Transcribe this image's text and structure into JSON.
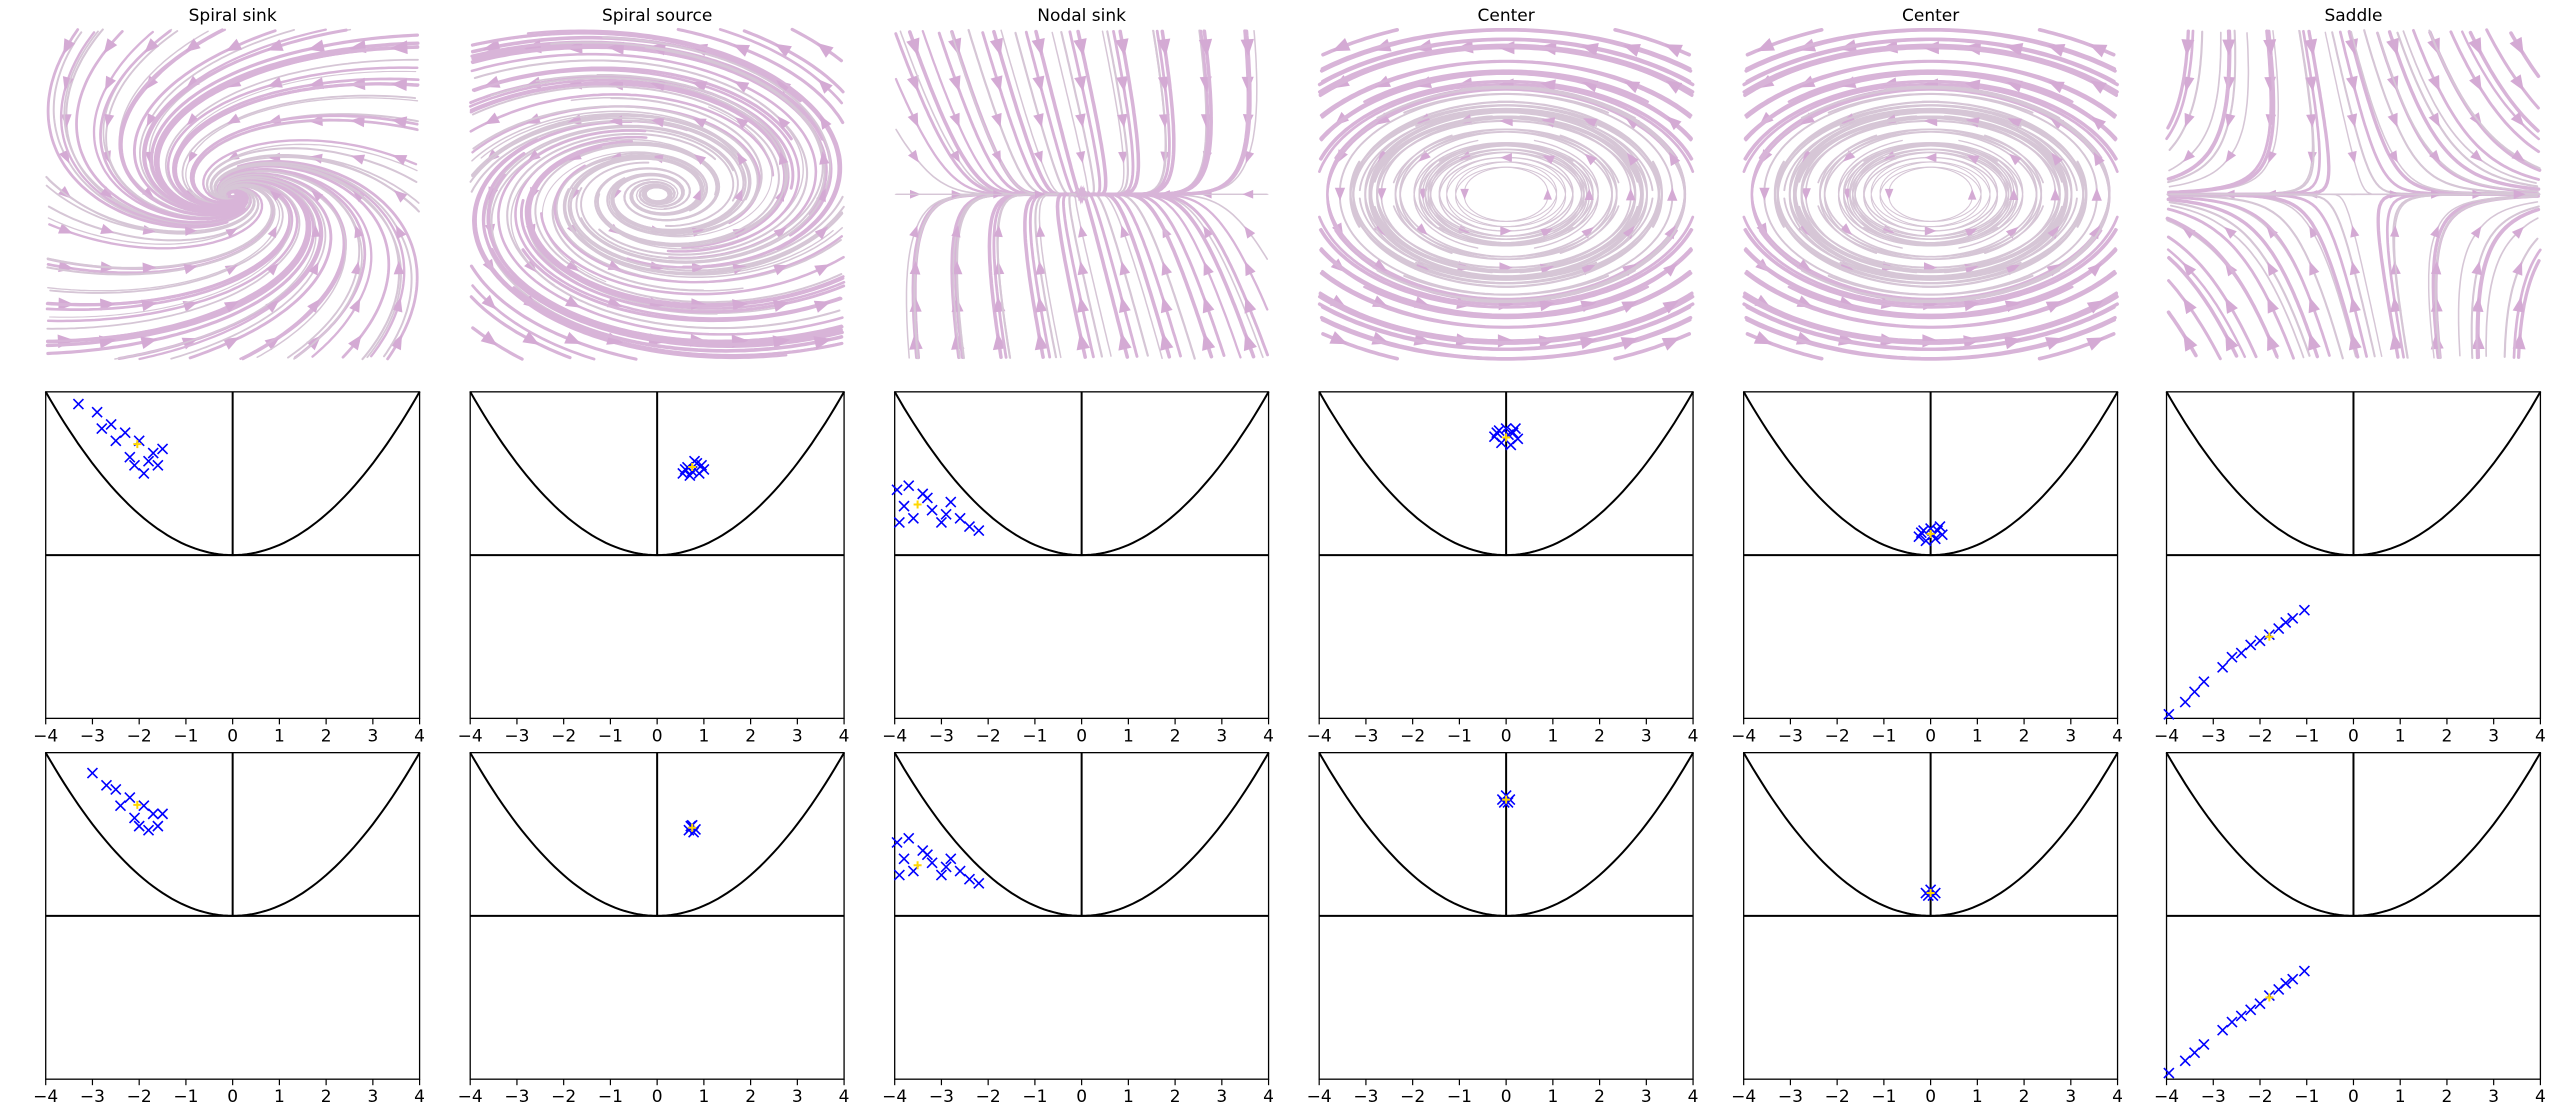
{
  "columns": [
    {
      "title": "Spiral sink"
    },
    {
      "title": "Spiral source"
    },
    {
      "title": "Nodal sink"
    },
    {
      "title": "Center"
    },
    {
      "title": "Center"
    },
    {
      "title": "Saddle"
    }
  ],
  "chart_data": [
    {
      "type": "scatter",
      "xlim": [
        -4,
        4
      ],
      "ylim": [
        -4,
        4
      ],
      "xticks": [
        {
          "value": -4,
          "label": "−4"
        },
        {
          "value": -3,
          "label": "−3"
        },
        {
          "value": -2,
          "label": "−2"
        },
        {
          "value": -1,
          "label": "−1"
        },
        0,
        1,
        2,
        3,
        4
      ],
      "series": [
        {
          "color": "#0000ff",
          "x": [
            -3.3,
            -2.9,
            -2.6,
            -2.3,
            -2.0,
            -1.7,
            -1.6,
            -2.2,
            -1.9,
            -2.5,
            -1.5,
            -2.1,
            -2.8,
            -1.8
          ],
          "y": [
            3.7,
            3.5,
            3.2,
            3.0,
            2.8,
            2.5,
            2.2,
            2.4,
            2.0,
            2.8,
            2.6,
            2.2,
            3.1,
            2.3
          ]
        },
        {
          "color": "#ffd700",
          "x": [
            -2.04
          ],
          "y": [
            2.72
          ]
        }
      ]
    },
    {
      "type": "scatter",
      "xlim": [
        -4,
        4
      ],
      "ylim": [
        -4,
        4
      ],
      "xticks": [
        {
          "value": -4,
          "label": "−4"
        },
        {
          "value": -3,
          "label": "−3"
        },
        {
          "value": -2,
          "label": "−2"
        },
        {
          "value": -1,
          "label": "−1"
        },
        0,
        1,
        2,
        3,
        4
      ],
      "series": [
        {
          "color": "#0000ff",
          "x": [
            -3.0,
            -2.7,
            -2.5,
            -2.2,
            -1.9,
            -1.7,
            -1.6,
            -2.1,
            -1.8,
            -2.4,
            -1.5,
            -2.0
          ],
          "y": [
            3.5,
            3.2,
            3.1,
            2.9,
            2.7,
            2.5,
            2.2,
            2.4,
            2.1,
            2.7,
            2.5,
            2.2
          ]
        },
        {
          "color": "#ffd700",
          "x": [
            -2.04
          ],
          "y": [
            2.72
          ]
        }
      ]
    },
    {
      "type": "scatter",
      "xlim": [
        -4,
        4
      ],
      "ylim": [
        -4,
        4
      ],
      "xticks": [
        {
          "value": -4,
          "label": "−4"
        },
        {
          "value": -3,
          "label": "−3"
        },
        {
          "value": -2,
          "label": "−2"
        },
        {
          "value": -1,
          "label": "−1"
        },
        0,
        1,
        2,
        3,
        4
      ],
      "series": [
        {
          "color": "#0000ff",
          "x": [
            0.55,
            0.65,
            0.75,
            0.85,
            0.95,
            1.0,
            0.7,
            0.8,
            0.9,
            0.6
          ],
          "y": [
            2.0,
            2.15,
            2.05,
            2.25,
            2.2,
            2.1,
            1.95,
            2.3,
            2.0,
            2.1
          ]
        },
        {
          "color": "#ffd700",
          "x": [
            0.75
          ],
          "y": [
            2.16
          ]
        }
      ]
    },
    {
      "type": "scatter",
      "xlim": [
        -4,
        4
      ],
      "ylim": [
        -4,
        4
      ],
      "xticks": [
        {
          "value": -4,
          "label": "−4"
        },
        {
          "value": -3,
          "label": "−3"
        },
        {
          "value": -2,
          "label": "−2"
        },
        {
          "value": -1,
          "label": "−1"
        },
        0,
        1,
        2,
        3,
        4
      ],
      "series": [
        {
          "color": "#0000ff",
          "x": [
            0.68,
            0.75,
            0.82,
            0.78,
            0.72
          ],
          "y": [
            2.1,
            2.22,
            2.12,
            2.05,
            2.2
          ]
        },
        {
          "color": "#ffd700",
          "x": [
            0.75
          ],
          "y": [
            2.16
          ]
        }
      ]
    },
    {
      "type": "scatter",
      "xlim": [
        -4,
        4
      ],
      "ylim": [
        -4,
        4
      ],
      "xticks": [
        {
          "value": -4,
          "label": "−4"
        },
        {
          "value": -3,
          "label": "−3"
        },
        {
          "value": -2,
          "label": "−2"
        },
        {
          "value": -1,
          "label": "−1"
        },
        0,
        1,
        2,
        3,
        4
      ],
      "series": [
        {
          "color": "#0000ff",
          "x": [
            -3.95,
            -3.8,
            -3.6,
            -3.4,
            -3.2,
            -3.0,
            -2.8,
            -2.6,
            -2.4,
            -2.2,
            -3.7,
            -3.3,
            -2.9,
            -3.9
          ],
          "y": [
            1.6,
            1.2,
            0.9,
            1.5,
            1.1,
            0.8,
            1.3,
            0.9,
            0.7,
            0.6,
            1.7,
            1.4,
            1.0,
            0.8
          ]
        },
        {
          "color": "#ffd700",
          "x": [
            -3.51
          ],
          "y": [
            1.24
          ]
        }
      ]
    },
    {
      "type": "scatter",
      "xlim": [
        -4,
        4
      ],
      "ylim": [
        -4,
        4
      ],
      "xticks": [
        {
          "value": -4,
          "label": "−4"
        },
        {
          "value": -3,
          "label": "−3"
        },
        {
          "value": -2,
          "label": "−2"
        },
        {
          "value": -1,
          "label": "−1"
        },
        0,
        1,
        2,
        3,
        4
      ],
      "series": [
        {
          "color": "#0000ff",
          "x": [
            -3.95,
            -3.8,
            -3.6,
            -3.4,
            -3.2,
            -3.0,
            -2.8,
            -2.6,
            -2.4,
            -2.2,
            -3.7,
            -3.3,
            -2.9,
            -3.9
          ],
          "y": [
            1.8,
            1.4,
            1.1,
            1.6,
            1.3,
            1.0,
            1.4,
            1.1,
            0.9,
            0.8,
            1.9,
            1.5,
            1.2,
            1.0
          ]
        },
        {
          "color": "#ffd700",
          "x": [
            -3.51
          ],
          "y": [
            1.24
          ]
        }
      ]
    },
    {
      "type": "scatter",
      "xlim": [
        -4,
        4
      ],
      "ylim": [
        -4,
        4
      ],
      "xticks": [
        {
          "value": -4,
          "label": "−4"
        },
        {
          "value": -3,
          "label": "−3"
        },
        {
          "value": -2,
          "label": "−2"
        },
        {
          "value": -1,
          "label": "−1"
        },
        0,
        1,
        2,
        3,
        4
      ],
      "series": [
        {
          "color": "#0000ff",
          "x": [
            -0.25,
            -0.15,
            0,
            0.15,
            0.25,
            -0.1,
            0.1,
            0.2,
            -0.2,
            0.05
          ],
          "y": [
            2.9,
            3.05,
            3.1,
            3.0,
            2.85,
            2.75,
            2.7,
            3.1,
            3.0,
            2.95
          ]
        },
        {
          "color": "#ffd700",
          "x": [
            0
          ],
          "y": [
            2.88
          ]
        }
      ]
    },
    {
      "type": "scatter",
      "xlim": [
        -4,
        4
      ],
      "ylim": [
        -4,
        4
      ],
      "xticks": [
        {
          "value": -4,
          "label": "−4"
        },
        {
          "value": -3,
          "label": "−3"
        },
        {
          "value": -2,
          "label": "−2"
        },
        {
          "value": -1,
          "label": "−1"
        },
        0,
        1,
        2,
        3,
        4
      ],
      "series": [
        {
          "color": "#0000ff",
          "x": [
            -0.08,
            0,
            0.08,
            0.04,
            -0.04
          ],
          "y": [
            2.85,
            2.95,
            2.85,
            2.78,
            2.78
          ]
        },
        {
          "color": "#ffd700",
          "x": [
            0
          ],
          "y": [
            2.85
          ]
        }
      ]
    },
    {
      "type": "scatter",
      "xlim": [
        -4,
        4
      ],
      "ylim": [
        -4,
        4
      ],
      "xticks": [
        {
          "value": -4,
          "label": "−4"
        },
        {
          "value": -3,
          "label": "−3"
        },
        {
          "value": -2,
          "label": "−2"
        },
        {
          "value": -1,
          "label": "−1"
        },
        0,
        1,
        2,
        3,
        4
      ],
      "series": [
        {
          "color": "#0000ff",
          "x": [
            -0.25,
            -0.15,
            0,
            0.15,
            0.25,
            -0.1,
            0.1,
            0.2,
            -0.2,
            0.05
          ],
          "y": [
            0.45,
            0.6,
            0.65,
            0.6,
            0.5,
            0.35,
            0.4,
            0.7,
            0.55,
            0.5
          ]
        },
        {
          "color": "#ffd700",
          "x": [
            0
          ],
          "y": [
            0.52
          ]
        }
      ]
    },
    {
      "type": "scatter",
      "xlim": [
        -4,
        4
      ],
      "ylim": [
        -4,
        4
      ],
      "xticks": [
        {
          "value": -4,
          "label": "−4"
        },
        {
          "value": -3,
          "label": "−3"
        },
        {
          "value": -2,
          "label": "−2"
        },
        {
          "value": -1,
          "label": "−1"
        },
        0,
        1,
        2,
        3,
        4
      ],
      "series": [
        {
          "color": "#0000ff",
          "x": [
            -0.1,
            0,
            0.1,
            0.05,
            -0.05
          ],
          "y": [
            0.56,
            0.64,
            0.56,
            0.5,
            0.5
          ]
        },
        {
          "color": "#ffd700",
          "x": [
            0
          ],
          "y": [
            0.56
          ]
        }
      ]
    },
    {
      "type": "scatter",
      "xlim": [
        -4,
        4
      ],
      "ylim": [
        -4,
        4
      ],
      "xticks": [
        {
          "value": -4,
          "label": "−4"
        },
        {
          "value": -3,
          "label": "−3"
        },
        {
          "value": -2,
          "label": "−2"
        },
        {
          "value": -1,
          "label": "−1"
        },
        0,
        1,
        2,
        3,
        4
      ],
      "series": [
        {
          "color": "#0000ff",
          "x": [
            -3.95,
            -3.6,
            -3.2,
            -2.8,
            -2.4,
            -2.0,
            -1.6,
            -1.3,
            -1.05,
            -2.6,
            -1.8,
            -3.4,
            -2.2,
            -1.45
          ],
          "y": [
            -3.9,
            -3.6,
            -3.1,
            -2.75,
            -2.4,
            -2.1,
            -1.8,
            -1.55,
            -1.35,
            -2.5,
            -1.95,
            -3.35,
            -2.2,
            -1.65
          ]
        },
        {
          "color": "#ffd700",
          "x": [
            -1.8
          ],
          "y": [
            -2.0
          ]
        }
      ]
    },
    {
      "type": "scatter",
      "xlim": [
        -4,
        4
      ],
      "ylim": [
        -4,
        4
      ],
      "xticks": [
        {
          "value": -4,
          "label": "−4"
        },
        {
          "value": -3,
          "label": "−3"
        },
        {
          "value": -2,
          "label": "−2"
        },
        {
          "value": -1,
          "label": "−1"
        },
        0,
        1,
        2,
        3,
        4
      ],
      "series": [
        {
          "color": "#0000ff",
          "x": [
            -3.95,
            -3.6,
            -3.2,
            -2.8,
            -2.4,
            -2.0,
            -1.6,
            -1.3,
            -1.05,
            -2.6,
            -1.8,
            -3.4,
            -2.2,
            -1.45
          ],
          "y": [
            -3.85,
            -3.55,
            -3.15,
            -2.8,
            -2.45,
            -2.15,
            -1.8,
            -1.55,
            -1.35,
            -2.6,
            -1.95,
            -3.35,
            -2.3,
            -1.65
          ]
        },
        {
          "color": "#ffd700",
          "x": [
            -1.8
          ],
          "y": [
            -2.0
          ]
        }
      ]
    }
  ]
}
